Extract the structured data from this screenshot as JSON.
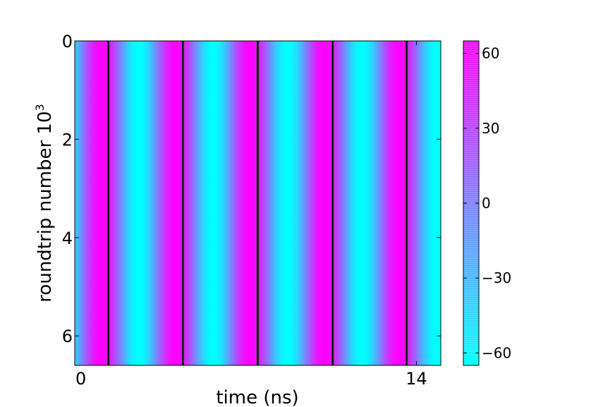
{
  "chart_data": {
    "type": "heatmap",
    "title": "",
    "xlabel": "time (ns)",
    "ylabel": "roundtrip number 10",
    "ylabel_superscript": "3",
    "xlim": [
      0,
      15
    ],
    "ylim": [
      0,
      6.6
    ],
    "y_inverted": true,
    "x_ticks": [
      {
        "value": 0,
        "label": "0"
      },
      {
        "value": 14,
        "label": "14"
      }
    ],
    "y_ticks": [
      {
        "value": 0,
        "label": "0"
      },
      {
        "value": 2,
        "label": "2"
      },
      {
        "value": 4,
        "label": "4"
      },
      {
        "value": 6,
        "label": "6"
      }
    ],
    "field": {
      "description_period_ns": 3.05,
      "phase_min_x_ns": 2.62,
      "amplitude": 65
    },
    "pulse_lines_x": [
      1.38,
      4.43,
      7.5,
      10.57,
      13.6
    ],
    "colorbar": {
      "min": -65,
      "max": 65,
      "ticks": [
        {
          "value": 60,
          "label": "60"
        },
        {
          "value": 30,
          "label": "30"
        },
        {
          "value": 0,
          "label": "0"
        },
        {
          "value": -30,
          "label": "−30"
        },
        {
          "value": -60,
          "label": "−60"
        }
      ],
      "colormap": [
        "#00ffff",
        "#ff00ff"
      ]
    },
    "grid": false,
    "legend": "none"
  }
}
